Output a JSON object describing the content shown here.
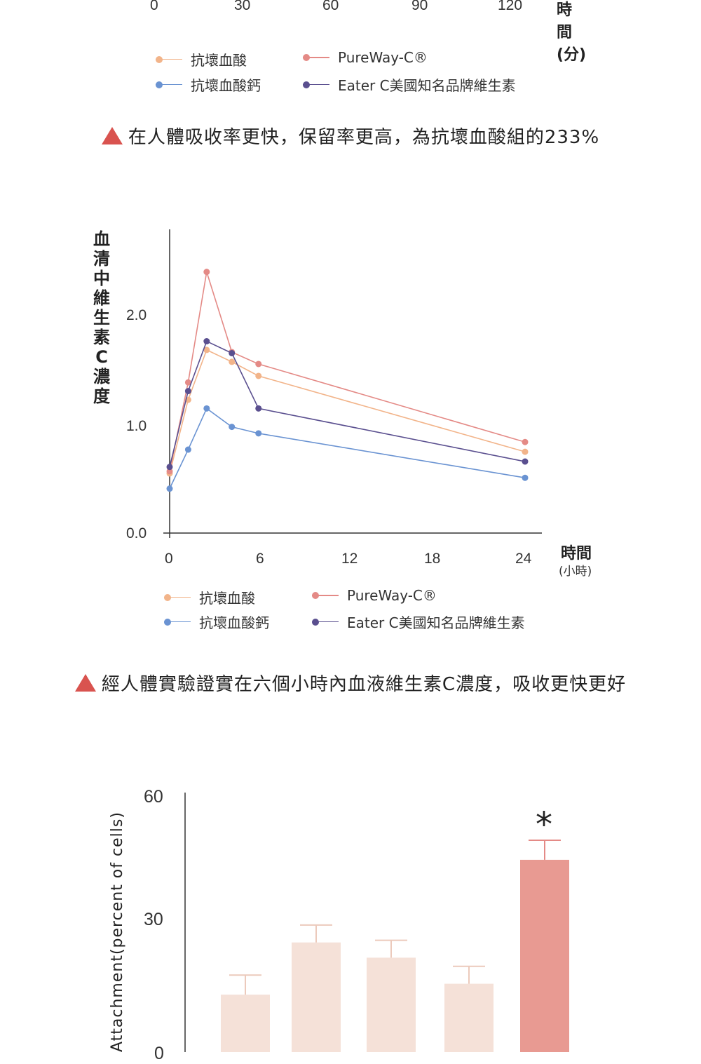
{
  "chart1_partial": {
    "x_ticks": [
      "0",
      "30",
      "60",
      "90",
      "120"
    ],
    "xlabel": "時間(分)",
    "legend": [
      {
        "label": "抗壞血酸",
        "color": "#f2b48a"
      },
      {
        "label": "PureWay-C®",
        "color": "#e48a86"
      },
      {
        "label": "抗壞血酸鈣",
        "color": "#6a93d2"
      },
      {
        "label": "Eater C美國知名品牌維生素",
        "color": "#5a4f8f"
      }
    ],
    "caption": "在人體吸收率更快，保留率更高，為抗壞血酸組的233%"
  },
  "chart_data": [
    {
      "type": "line",
      "ylabel": "血清中維生素C濃度",
      "xlabel": "時間",
      "xlabel_unit": "(小時)",
      "x_ticks": [
        "0",
        "6",
        "12",
        "18",
        "24"
      ],
      "y_ticks": [
        "0.0",
        "1.0",
        "2.0"
      ],
      "xlim": [
        0,
        24
      ],
      "ylim": [
        0,
        2.75
      ],
      "series": [
        {
          "name": "抗壞血酸",
          "color": "#f2b48a",
          "points": [
            [
              0,
              0.55
            ],
            [
              1.25,
              1.23
            ],
            [
              2.5,
              1.69
            ],
            [
              4.2,
              1.58
            ],
            [
              6,
              1.45
            ],
            [
              24,
              0.75
            ]
          ]
        },
        {
          "name": "PureWay-C®",
          "color": "#e48a86",
          "points": [
            [
              0,
              0.57
            ],
            [
              1.25,
              1.39
            ],
            [
              2.5,
              2.41
            ],
            [
              4.2,
              1.67
            ],
            [
              6,
              1.56
            ],
            [
              24,
              0.84
            ]
          ]
        },
        {
          "name": "抗壞血酸鈣",
          "color": "#6a93d2",
          "points": [
            [
              0,
              0.41
            ],
            [
              1.25,
              0.77
            ],
            [
              2.5,
              1.15
            ],
            [
              4.2,
              0.98
            ],
            [
              6,
              0.92
            ],
            [
              24,
              0.51
            ]
          ]
        },
        {
          "name": "Eater C美國知名品牌維生素",
          "color": "#5a4f8f",
          "points": [
            [
              0,
              0.61
            ],
            [
              1.25,
              1.31
            ],
            [
              2.5,
              1.77
            ],
            [
              4.2,
              1.66
            ],
            [
              6,
              1.15
            ],
            [
              24,
              0.66
            ]
          ]
        }
      ],
      "legend_placement": "bottom",
      "caption": "經人體實驗證實在六個小時內血液維生素C濃度，吸收更快更好"
    },
    {
      "type": "bar",
      "ylabel": "Attachment(percent of cells)",
      "y_ticks": [
        "0",
        "30",
        "60"
      ],
      "ylim": [
        0,
        60
      ],
      "values": [
        14.5,
        26.5,
        23,
        17,
        45.5
      ],
      "errors": [
        4.5,
        4,
        4,
        4,
        4.5
      ],
      "colors": [
        "#f5e1d8",
        "#f5e1d8",
        "#f5e1d8",
        "#f5e1d8",
        "#e89a92"
      ],
      "annotation": "*",
      "annotation_index": 4
    }
  ]
}
